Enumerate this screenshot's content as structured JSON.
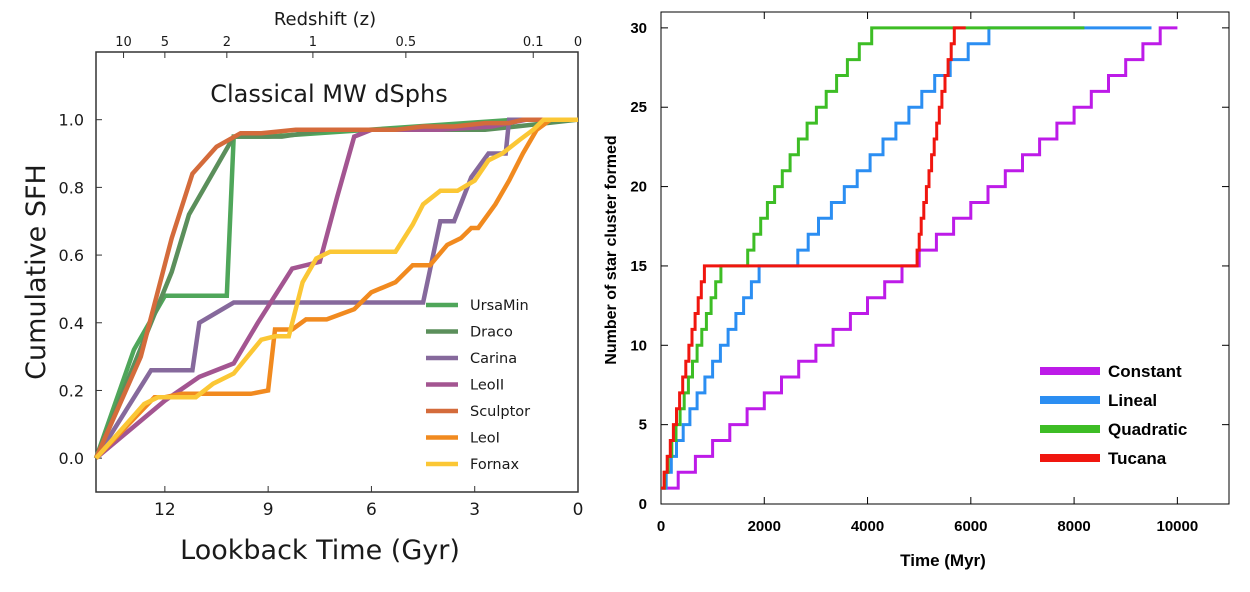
{
  "chart_data": [
    {
      "type": "line",
      "title": "Classical MW dSphs",
      "xlabel": "Lookback Time (Gyr)",
      "ylabel": "Cumulative SFH",
      "xlim": [
        14.0,
        0
      ],
      "ylim": [
        -0.1,
        1.2
      ],
      "x_ticks": [
        "12",
        "9",
        "6",
        "3",
        "0"
      ],
      "y_ticks": [
        "0.0",
        "0.2",
        "0.4",
        "0.6",
        "0.8",
        "1.0"
      ],
      "x_ticks_values": [
        12,
        9,
        6,
        3,
        0
      ],
      "y_ticks_values": [
        0.0,
        0.2,
        0.4,
        0.6,
        0.8,
        1.0
      ],
      "top_axis_label": "Redshift (z)",
      "top_ticks": [
        {
          "label": "10",
          "t": 13.2
        },
        {
          "label": "5",
          "t": 12.0
        },
        {
          "label": "2",
          "t": 10.2
        },
        {
          "label": "1",
          "t": 7.7
        },
        {
          "label": "0.5",
          "t": 5.0
        },
        {
          "label": "0.1",
          "t": 1.3
        },
        {
          "label": "0",
          "t": 0
        }
      ],
      "grid": false,
      "legend_position": "lower-right",
      "series": [
        {
          "name": "UrsaMin",
          "color": "#4fa65a",
          "x": [
            14.0,
            12.9,
            12.0,
            11.2,
            10.2,
            10.0,
            9.0,
            1.8,
            1.2,
            0.8,
            0
          ],
          "y": [
            0.0,
            0.32,
            0.48,
            0.48,
            0.48,
            0.95,
            0.95,
            1.0,
            1.0,
            1.0,
            1.0
          ]
        },
        {
          "name": "Draco",
          "color": "#5b8f5b",
          "x": [
            14.0,
            12.6,
            11.8,
            11.3,
            10.0,
            8.6,
            7.3,
            5.6,
            4.3,
            2.7,
            1.8,
            0
          ],
          "y": [
            0.0,
            0.35,
            0.55,
            0.72,
            0.95,
            0.95,
            0.97,
            0.97,
            0.97,
            0.97,
            0.98,
            1.0
          ]
        },
        {
          "name": "Carina",
          "color": "#86699c",
          "x": [
            14.0,
            12.4,
            12.0,
            11.5,
            11.2,
            11.0,
            10.0,
            9.0,
            5.5,
            5.0,
            4.5,
            4.0,
            3.6,
            3.1,
            2.6,
            2.1,
            2.0,
            1.8,
            1.2,
            0.6,
            0
          ],
          "y": [
            0.0,
            0.26,
            0.26,
            0.26,
            0.26,
            0.4,
            0.46,
            0.46,
            0.46,
            0.46,
            0.46,
            0.7,
            0.7,
            0.83,
            0.9,
            0.9,
            1.0,
            1.0,
            1.0,
            1.0,
            1.0
          ]
        },
        {
          "name": "LeoII",
          "color": "#a35591",
          "x": [
            14.0,
            12.0,
            11.0,
            10.0,
            9.3,
            8.3,
            7.5,
            7.0,
            6.5,
            6.0,
            5.8,
            4.0,
            2.5,
            1.5,
            0
          ],
          "y": [
            0.0,
            0.17,
            0.24,
            0.28,
            0.4,
            0.56,
            0.58,
            0.77,
            0.95,
            0.97,
            0.97,
            0.97,
            0.98,
            1.0,
            1.0
          ]
        },
        {
          "name": "Sculptor",
          "color": "#d46b3b",
          "x": [
            14.0,
            12.7,
            11.8,
            11.2,
            10.5,
            9.8,
            9.2,
            8.2,
            7.2,
            6.3,
            5.3,
            4.5,
            3.6,
            2.7,
            2.0,
            1.6,
            0
          ],
          "y": [
            0.0,
            0.3,
            0.65,
            0.84,
            0.92,
            0.96,
            0.96,
            0.97,
            0.97,
            0.97,
            0.97,
            0.98,
            0.98,
            0.99,
            0.99,
            1.0,
            1.0
          ]
        },
        {
          "name": "LeoI",
          "color": "#f18a1f",
          "x": [
            14.0,
            12.3,
            12.0,
            11.5,
            10.5,
            9.5,
            9.0,
            8.8,
            8.3,
            7.9,
            7.7,
            7.3,
            6.5,
            6.0,
            5.3,
            4.8,
            4.5,
            4.3,
            3.8,
            3.4,
            3.1,
            2.9,
            2.4,
            2.0,
            1.6,
            1.2,
            0.8,
            0
          ],
          "y": [
            0.0,
            0.18,
            0.18,
            0.19,
            0.19,
            0.19,
            0.2,
            0.38,
            0.38,
            0.41,
            0.41,
            0.41,
            0.44,
            0.49,
            0.52,
            0.57,
            0.57,
            0.57,
            0.63,
            0.65,
            0.68,
            0.68,
            0.75,
            0.82,
            0.9,
            0.97,
            1.0,
            1.0
          ]
        },
        {
          "name": "Fornax",
          "color": "#fbc735",
          "x": [
            14.0,
            12.6,
            12.2,
            11.8,
            11.1,
            10.6,
            10.0,
            9.6,
            9.2,
            8.8,
            8.4,
            8.0,
            7.6,
            7.2,
            6.8,
            6.2,
            5.8,
            5.3,
            4.8,
            4.5,
            4.0,
            3.5,
            3.0,
            2.6,
            2.2,
            1.7,
            1.3,
            1.0,
            0.6,
            0
          ],
          "y": [
            0.0,
            0.16,
            0.18,
            0.18,
            0.18,
            0.22,
            0.25,
            0.3,
            0.35,
            0.36,
            0.36,
            0.52,
            0.59,
            0.61,
            0.61,
            0.61,
            0.61,
            0.61,
            0.69,
            0.75,
            0.79,
            0.79,
            0.82,
            0.88,
            0.9,
            0.94,
            0.97,
            1.0,
            1.0,
            1.0
          ]
        }
      ]
    },
    {
      "type": "line",
      "title": "",
      "xlabel": "Time (Myr)",
      "ylabel": "Number of star cluster formed",
      "xlim": [
        0,
        11000
      ],
      "ylim": [
        0,
        31
      ],
      "x_ticks": [
        "0",
        "2000",
        "4000",
        "6000",
        "8000",
        "10000"
      ],
      "y_ticks": [
        "0",
        "5",
        "10",
        "15",
        "20",
        "25",
        "30"
      ],
      "x_ticks_values": [
        0,
        2000,
        4000,
        6000,
        8000,
        10000
      ],
      "y_ticks_values": [
        0,
        5,
        10,
        15,
        20,
        25,
        30
      ],
      "grid": false,
      "legend_position": "lower-right",
      "step": true,
      "series": [
        {
          "name": "Constant",
          "color": "#bd1be8",
          "x": [
            0,
            333,
            667,
            1000,
            1333,
            1667,
            2000,
            2333,
            2667,
            3000,
            3333,
            3667,
            4000,
            4333,
            4667,
            5000,
            5333,
            5667,
            6000,
            6333,
            6667,
            7000,
            7333,
            7667,
            8000,
            8333,
            8667,
            9000,
            9333,
            9667,
            10000
          ],
          "y": [
            1,
            2,
            3,
            4,
            5,
            6,
            7,
            8,
            9,
            10,
            11,
            12,
            13,
            14,
            15,
            16,
            17,
            18,
            19,
            20,
            21,
            22,
            23,
            24,
            25,
            26,
            27,
            28,
            29,
            30,
            30
          ]
        },
        {
          "name": "Lineal",
          "color": "#2b8ef2",
          "x": [
            0,
            100,
            200,
            300,
            430,
            560,
            700,
            850,
            1000,
            1150,
            1300,
            1450,
            1600,
            1750,
            1900,
            2050,
            2250,
            2450,
            2650,
            2850,
            3050,
            3300,
            3550,
            3800,
            4050,
            4300,
            4550,
            4800,
            5050,
            5300,
            5600,
            5950,
            6350,
            6800,
            7400,
            8100,
            9500
          ],
          "y": [
            1,
            2,
            3,
            4,
            5,
            6,
            7,
            8,
            9,
            10,
            11,
            12,
            13,
            14,
            15,
            15,
            15,
            15,
            16,
            17,
            18,
            19,
            20,
            21,
            22,
            23,
            24,
            25,
            26,
            27,
            28,
            29,
            30,
            30,
            30,
            30,
            30
          ]
        },
        {
          "name": "Quadratic",
          "color": "#3dbd25",
          "x": [
            0,
            70,
            140,
            210,
            290,
            370,
            450,
            530,
            610,
            700,
            790,
            880,
            970,
            1060,
            1160,
            1260,
            1360,
            1460,
            1570,
            1680,
            1800,
            1930,
            2060,
            2200,
            2350,
            2500,
            2660,
            2830,
            3010,
            3200,
            3400,
            3610,
            3840,
            4080,
            4340,
            4620,
            4920,
            5250,
            5600,
            5850,
            8200
          ],
          "y": [
            1,
            2,
            3,
            4,
            5,
            6,
            7,
            8,
            9,
            10,
            11,
            12,
            13,
            14,
            15,
            15,
            15,
            15,
            15,
            16,
            17,
            18,
            19,
            20,
            21,
            22,
            23,
            24,
            25,
            26,
            27,
            28,
            29,
            30,
            30,
            30,
            30,
            30,
            30,
            30,
            30
          ]
        },
        {
          "name": "Tucana",
          "color": "#f0160f",
          "x": [
            0,
            60,
            120,
            180,
            240,
            300,
            360,
            420,
            480,
            540,
            600,
            660,
            720,
            780,
            840,
            900,
            4920,
            4960,
            5000,
            5040,
            5090,
            5140,
            5190,
            5240,
            5290,
            5340,
            5390,
            5440,
            5500,
            5560,
            5620,
            5680,
            5750,
            5820,
            5900
          ],
          "y": [
            1,
            2,
            3,
            4,
            5,
            6,
            7,
            8,
            9,
            10,
            11,
            12,
            13,
            14,
            15,
            15,
            15,
            16,
            17,
            18,
            19,
            20,
            21,
            22,
            23,
            24,
            25,
            26,
            27,
            28,
            29,
            30,
            30,
            30,
            30
          ]
        }
      ]
    }
  ]
}
